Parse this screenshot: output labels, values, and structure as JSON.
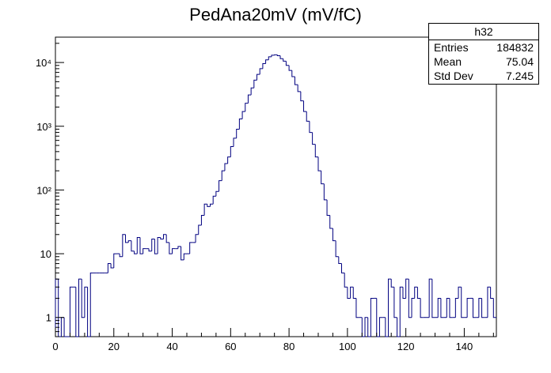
{
  "chart_data": {
    "type": "histogram",
    "title": "PedAna20mV (mV/fC)",
    "xlabel": "",
    "ylabel": "",
    "xlim": [
      0,
      151
    ],
    "ylim": [
      0.5,
      25000
    ],
    "ylog": true,
    "bin_width": 1,
    "bin_start": 0,
    "line_color": "#000080",
    "x_ticks": [
      0,
      20,
      40,
      60,
      80,
      100,
      120,
      140
    ],
    "x_tick_labels": [
      "0",
      "20",
      "40",
      "60",
      "80",
      "100",
      "120",
      "140"
    ],
    "y_ticks": [
      1,
      10,
      100,
      1000,
      10000
    ],
    "y_tick_labels": [
      "1",
      "10",
      "10²",
      "10³",
      "10⁴"
    ],
    "values": [
      4,
      0,
      1,
      0,
      0,
      3,
      3,
      0,
      4,
      1,
      3,
      0,
      5,
      5,
      5,
      5,
      5,
      5,
      7,
      6,
      10,
      10,
      9,
      20,
      15,
      16,
      11,
      10,
      18,
      10,
      12,
      12,
      11,
      17,
      10,
      18,
      17,
      20,
      15,
      10,
      12,
      12,
      13,
      8,
      10,
      10,
      15,
      15,
      20,
      28,
      40,
      60,
      55,
      60,
      80,
      95,
      140,
      200,
      260,
      330,
      480,
      650,
      900,
      1300,
      1700,
      2300,
      3100,
      4000,
      5300,
      6500,
      8000,
      9600,
      11000,
      12300,
      13000,
      13200,
      12800,
      11500,
      10500,
      9000,
      7500,
      6000,
      4500,
      3500,
      2500,
      1700,
      1200,
      800,
      520,
      330,
      200,
      125,
      70,
      40,
      25,
      16,
      9,
      7,
      5,
      3,
      2,
      3,
      2,
      1,
      1,
      0,
      1,
      0,
      2,
      2,
      0,
      1,
      1,
      0,
      4,
      3,
      1,
      0,
      3,
      2,
      4,
      1,
      2,
      3,
      2,
      1,
      1,
      1,
      4,
      1,
      1,
      2,
      1,
      1,
      2,
      1,
      1,
      2,
      3,
      1,
      1,
      2,
      2,
      1,
      1,
      2,
      1,
      1,
      3,
      2,
      1
    ]
  },
  "stats_box": {
    "name": "h32",
    "rows": [
      {
        "label": "Entries",
        "value": "184832"
      },
      {
        "label": "Mean",
        "value": "75.04"
      },
      {
        "label": "Std Dev",
        "value": "7.245"
      }
    ]
  }
}
